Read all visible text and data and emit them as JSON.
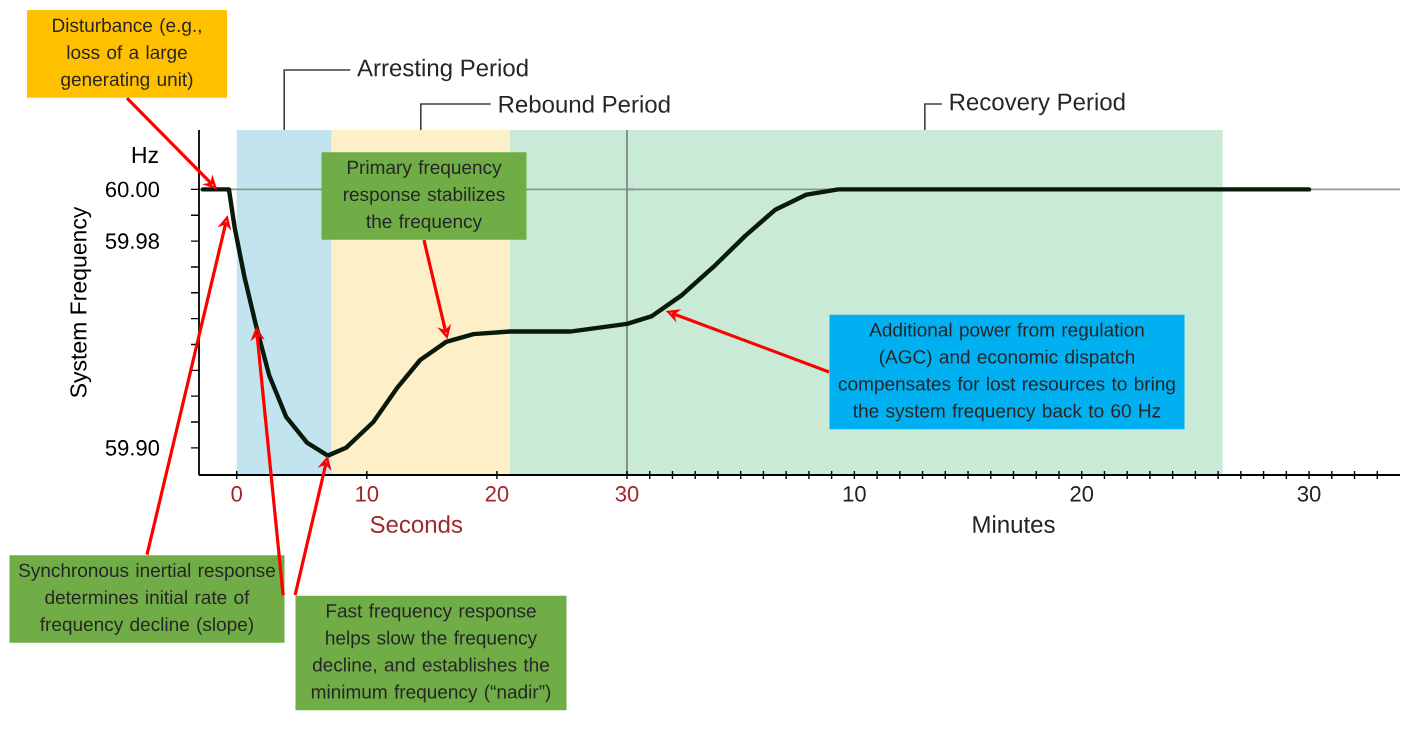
{
  "chart_data": [
    {
      "type": "line",
      "xlabel": "Seconds",
      "ylabel": "System Frequency",
      "xlim": [
        -2.9,
        30.5
      ],
      "ylim": [
        59.8895,
        60.023
      ],
      "xticks": [
        0,
        10,
        20,
        30
      ],
      "yticks": [
        {
          "value": 59.9,
          "label": "59.90"
        },
        {
          "value": 59.91,
          "label": null
        },
        {
          "value": 59.92,
          "label": null
        },
        {
          "value": 59.93,
          "label": null
        },
        {
          "value": 59.94,
          "label": null
        },
        {
          "value": 59.95,
          "label": null
        },
        {
          "value": 59.96,
          "label": null
        },
        {
          "value": 59.97,
          "label": null
        },
        {
          "value": 59.98,
          "label": "59.98"
        },
        {
          "value": 59.99,
          "label": null
        },
        {
          "value": 60,
          "label": "60.00"
        }
      ],
      "bands": [
        {
          "axis": "x",
          "from": 0,
          "to": 7.3,
          "label": "Arresting Period",
          "color": "#c2e4ef"
        },
        {
          "axis": "x",
          "from": 7.3,
          "to": 21,
          "label": "Rebound Period",
          "color": "#fdefc8"
        },
        {
          "axis": "x",
          "from": 21,
          "to": 30,
          "color": "#c8ead7"
        }
      ],
      "ref_lines": [
        {
          "axis": "y",
          "value": 60,
          "color": "#8a9a90"
        },
        {
          "axis": "x",
          "value": 30,
          "color": "#7d8a82"
        }
      ],
      "series": [
        {
          "color": "#0a1a0a",
          "x": [
            -2.6,
            -0.6,
            -0.15,
            0.6,
            1.5,
            2.5,
            3.8,
            5.4,
            7.0,
            8.4,
            10.5,
            12.3,
            14.1,
            16.1,
            18.2,
            21,
            25.6,
            30
          ],
          "values": [
            60,
            60,
            59.985,
            59.966,
            59.947,
            59.928,
            59.912,
            59.902,
            59.897,
            59.9,
            59.91,
            59.923,
            59.934,
            59.941,
            59.944,
            59.945,
            59.945,
            59.948
          ]
        }
      ],
      "annotations": [
        "Hz",
        {
          "text": "Disturbance (e.g., loss of a large generating unit)",
          "x": -1.5,
          "y": 60
        },
        {
          "text": "Synchronous inertial response determines initial rate of frequency decline (slope)",
          "x": -0.7,
          "y": 59.99
        },
        {
          "text": "Fast frequency response helps slow the frequency decline, and establishes the minimum frequency (“nadir”)",
          "x": 7.0,
          "y": 59.897
        },
        {
          "text": "Primary frequency response stabilizes the frequency",
          "x": 16.2,
          "y": 59.942
        }
      ]
    },
    {
      "type": "line",
      "xlabel": "Minutes",
      "xlim": [
        0,
        34
      ],
      "ylim": [
        59.8895,
        60.023
      ],
      "tick_labels": "x",
      "xticks": [
        {
          "value": 1,
          "label": null
        },
        {
          "value": 2,
          "label": null
        },
        {
          "value": 3,
          "label": null
        },
        {
          "value": 4,
          "label": null
        },
        {
          "value": 5,
          "label": null
        },
        {
          "value": 6,
          "label": null
        },
        {
          "value": 7,
          "label": null
        },
        {
          "value": 8,
          "label": null
        },
        {
          "value": 9,
          "label": null
        },
        10,
        {
          "value": 11,
          "label": null
        },
        {
          "value": 12,
          "label": null
        },
        {
          "value": 13,
          "label": null
        },
        {
          "value": 14,
          "label": null
        },
        {
          "value": 15,
          "label": null
        },
        {
          "value": 16,
          "label": null
        },
        {
          "value": 17,
          "label": null
        },
        {
          "value": 18,
          "label": null
        },
        {
          "value": 19,
          "label": null
        },
        20,
        {
          "value": 21,
          "label": null
        },
        {
          "value": 22,
          "label": null
        },
        {
          "value": 23,
          "label": null
        },
        {
          "value": 24,
          "label": null
        },
        {
          "value": 25,
          "label": null
        },
        {
          "value": 26,
          "label": null
        },
        {
          "value": 27,
          "label": null
        },
        {
          "value": 28,
          "label": null
        },
        {
          "value": 29,
          "label": null
        },
        30,
        {
          "value": 31,
          "label": null
        },
        {
          "value": 32,
          "label": null
        },
        {
          "value": 33,
          "label": null
        }
      ],
      "bands": [
        {
          "axis": "x",
          "from": 0,
          "to": 26.2,
          "label": "Recovery Period",
          "color": "#c8ead7"
        }
      ],
      "ref_lines": [
        {
          "axis": "y",
          "value": 60,
          "color": "#8a9a90"
        }
      ],
      "series": [
        {
          "color": "#0a1a0a",
          "x": [
            0,
            1.1,
            2.4,
            3.8,
            5.2,
            6.5,
            7.9,
            9.3,
            30
          ],
          "values": [
            59.948,
            59.951,
            59.959,
            59.97,
            59.982,
            59.992,
            59.998,
            60,
            60
          ]
        }
      ],
      "annotations": [
        {
          "text": "Additional power from regulation (AGC) and economic dispatch compensates for lost resources to bring the system frequency back to 60 Hz",
          "x": 1.7,
          "y": 59.953
        }
      ]
    }
  ]
}
